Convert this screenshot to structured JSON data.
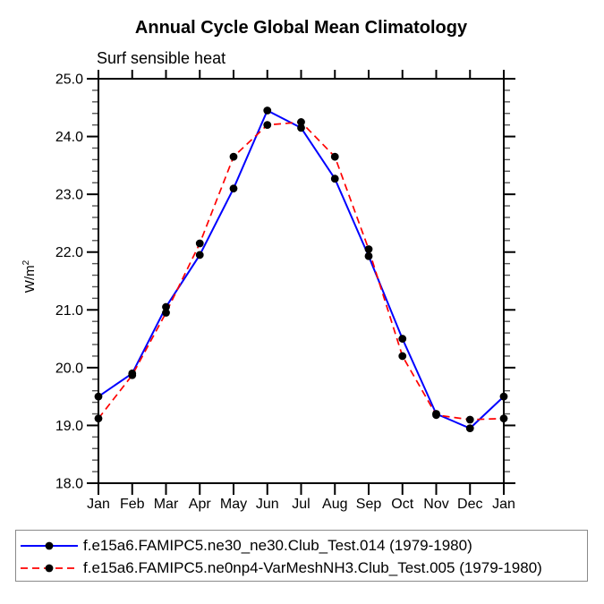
{
  "chart_data": {
    "type": "line",
    "title": "Annual Cycle Global Mean Climatology",
    "subtitle": "Surf sensible heat",
    "ylabel": "W/m²",
    "ylabel_base": "W/m",
    "ylabel_sup": "2",
    "categories": [
      "Jan",
      "Feb",
      "Mar",
      "Apr",
      "May",
      "Jun",
      "Jul",
      "Aug",
      "Sep",
      "Oct",
      "Nov",
      "Dec",
      "Jan"
    ],
    "ylim": [
      18.0,
      25.0
    ],
    "ytick_values": [
      18.0,
      19.0,
      20.0,
      21.0,
      22.0,
      23.0,
      24.0,
      25.0
    ],
    "ytick_labels": [
      "18.0",
      "19.0",
      "20.0",
      "21.0",
      "22.0",
      "23.0",
      "24.0",
      "25.0"
    ],
    "ytick_minor_step": 0.2,
    "grid": false,
    "legend_position": "bottom",
    "frame_color": "#000000",
    "marker_color": "#000000",
    "series": [
      {
        "name": "f.e15a6.FAMIPC5.ne30_ne30.Club_Test.014 (1979-1980)",
        "color": "#0000ff",
        "style": "solid",
        "marker": "circle",
        "values": [
          19.5,
          19.9,
          21.05,
          21.95,
          23.1,
          24.45,
          24.15,
          23.27,
          21.93,
          20.5,
          19.2,
          18.95,
          19.5
        ]
      },
      {
        "name": "f.e15a6.FAMIPC5.ne0np4-VarMeshNH3.Club_Test.005 (1979-1980)",
        "color": "#ff0000",
        "style": "dashed",
        "marker": "circle",
        "values": [
          19.12,
          19.87,
          20.95,
          22.15,
          23.65,
          24.2,
          24.25,
          23.65,
          22.05,
          20.2,
          19.18,
          19.1,
          19.12
        ]
      }
    ]
  }
}
